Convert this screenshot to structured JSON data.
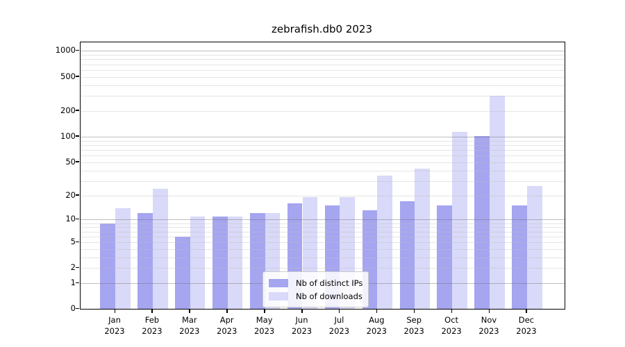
{
  "figure": {
    "title": "zebrafish.db0 2023"
  },
  "chart_data": {
    "type": "bar",
    "title": "zebrafish.db0 2023",
    "xlabel": "",
    "ylabel": "",
    "y_scale": "log1p",
    "ylim": [
      0,
      1258
    ],
    "grid": "on",
    "legend_position": "lower center (inside plot)",
    "categories": [
      {
        "month": "Jan",
        "year": "2023"
      },
      {
        "month": "Feb",
        "year": "2023"
      },
      {
        "month": "Mar",
        "year": "2023"
      },
      {
        "month": "Apr",
        "year": "2023"
      },
      {
        "month": "May",
        "year": "2023"
      },
      {
        "month": "Jun",
        "year": "2023"
      },
      {
        "month": "Jul",
        "year": "2023"
      },
      {
        "month": "Aug",
        "year": "2023"
      },
      {
        "month": "Sep",
        "year": "2023"
      },
      {
        "month": "Oct",
        "year": "2023"
      },
      {
        "month": "Nov",
        "year": "2023"
      },
      {
        "month": "Dec",
        "year": "2023"
      }
    ],
    "series": [
      {
        "name": "Nb of distinct IPs",
        "color": "#a5a5f0",
        "values": [
          9,
          12,
          6,
          11,
          12,
          16,
          15,
          13,
          17,
          15,
          102,
          15
        ]
      },
      {
        "name": "Nb of downloads",
        "color": "#d9d9f9",
        "values": [
          14,
          24,
          11,
          11,
          12,
          19,
          19,
          35,
          42,
          115,
          300,
          26
        ]
      }
    ],
    "y_axis": {
      "tick_labels": [
        1000,
        500,
        200,
        100,
        50,
        20,
        10,
        5,
        2,
        1,
        0
      ],
      "major_gridlines": [
        1,
        10,
        100,
        1000
      ],
      "minor_gridlines": [
        2,
        3,
        4,
        5,
        6,
        7,
        8,
        9,
        20,
        30,
        40,
        50,
        60,
        70,
        80,
        90,
        200,
        300,
        400,
        500,
        600,
        700,
        800,
        900
      ]
    }
  },
  "legend": {
    "items": [
      {
        "label": "Nb of distinct IPs"
      },
      {
        "label": "Nb of downloads"
      }
    ]
  },
  "colors": {
    "distinct_ips": "#a5a5f0",
    "downloads": "#d9d9f9",
    "frame": "#000000",
    "major_grid": "#b5b5b5",
    "minor_grid": "#e9e9e9"
  }
}
